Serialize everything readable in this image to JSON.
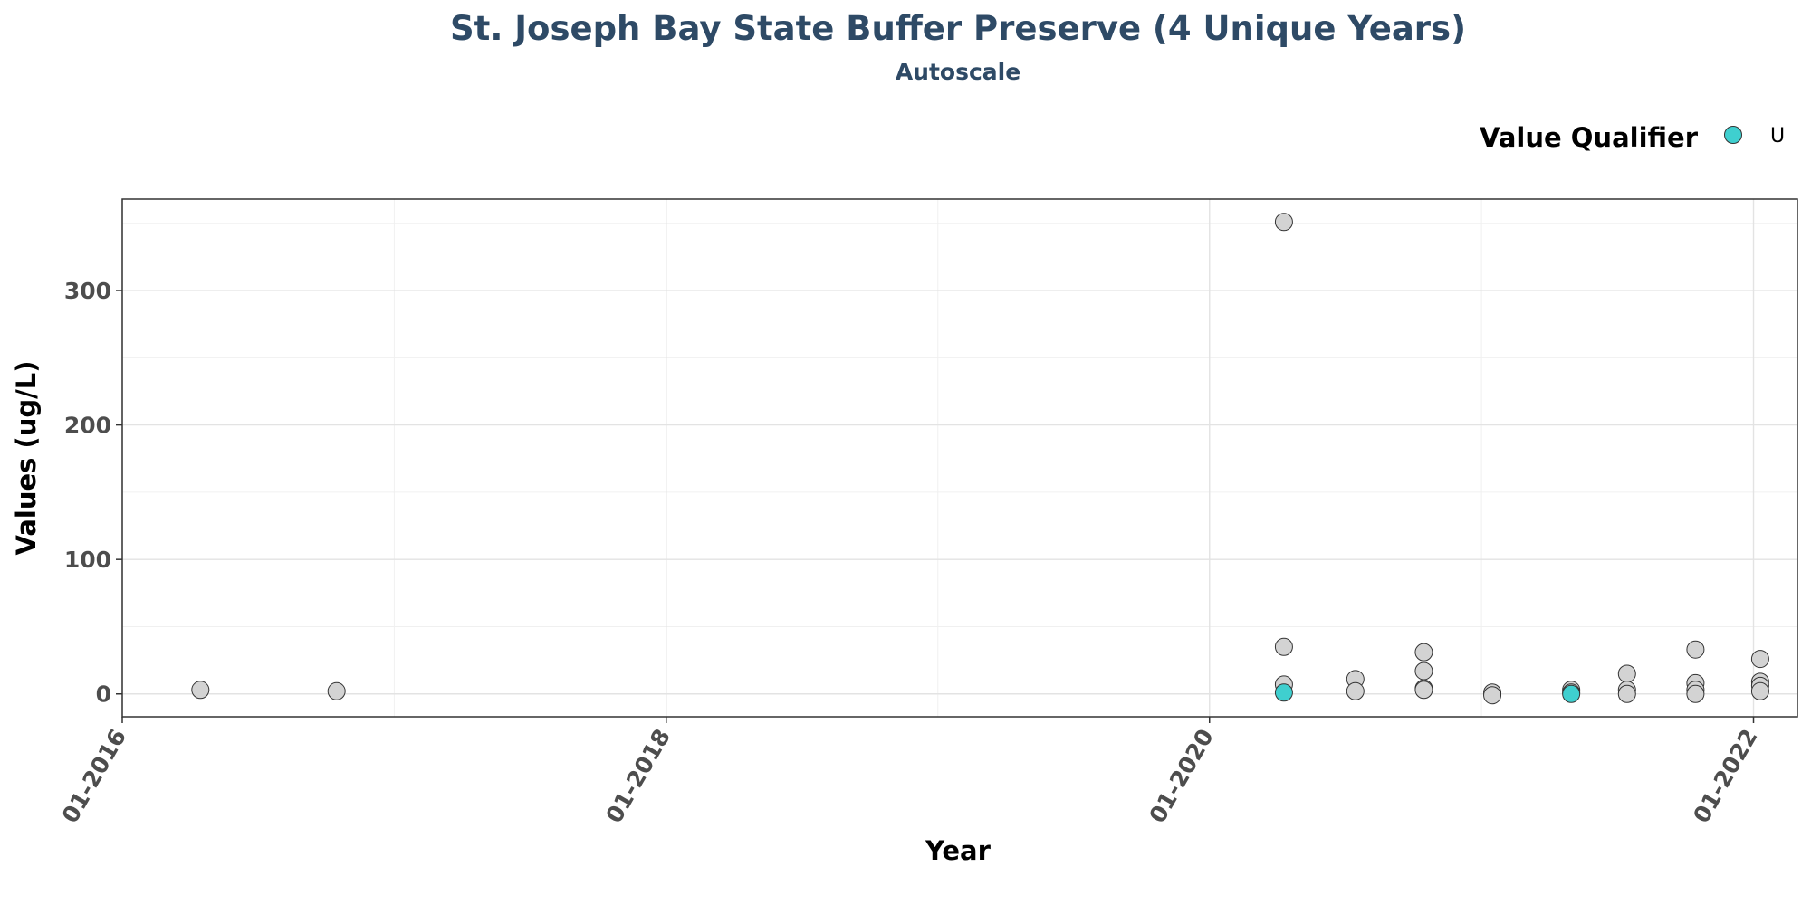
{
  "chart_data": {
    "type": "scatter",
    "title": "St. Joseph Bay State Buffer Preserve (4 Unique Years)",
    "subtitle": "Autoscale",
    "xlabel": "Year",
    "ylabel": "Values (ug/L)",
    "x_axis_type": "date",
    "xlim": [
      "2016-01-01",
      "2022-03-01"
    ],
    "ylim": [
      -17,
      368
    ],
    "x_ticks": [
      {
        "date": "2016-01-01",
        "label": "01-2016"
      },
      {
        "date": "2018-01-01",
        "label": "01-2018"
      },
      {
        "date": "2020-01-01",
        "label": "01-2020"
      },
      {
        "date": "2022-01-01",
        "label": "01-2022"
      }
    ],
    "y_ticks": [
      0,
      100,
      200,
      300
    ],
    "grid": true,
    "legend": {
      "title": "Value Qualifier",
      "position": "top-right",
      "entries": [
        {
          "label": "U",
          "color": "#3fcfcf"
        }
      ]
    },
    "colors": {
      "default_point": "#d3d3d3",
      "qualifier_U": "#3fcfcf",
      "title": "#2e4a66"
    },
    "series": [
      {
        "qualifier": "",
        "color": "#d3d3d3",
        "points": [
          {
            "x": "2016-04-15",
            "y": 3
          },
          {
            "x": "2016-10-15",
            "y": 2
          },
          {
            "x": "2020-04-10",
            "y": 351
          },
          {
            "x": "2020-04-10",
            "y": 35
          },
          {
            "x": "2020-04-10",
            "y": 7
          },
          {
            "x": "2020-07-15",
            "y": 11
          },
          {
            "x": "2020-07-15",
            "y": 2
          },
          {
            "x": "2020-10-15",
            "y": 31
          },
          {
            "x": "2020-10-15",
            "y": 17
          },
          {
            "x": "2020-10-15",
            "y": 4
          },
          {
            "x": "2020-10-15",
            "y": 3
          },
          {
            "x": "2021-01-15",
            "y": 1
          },
          {
            "x": "2021-01-15",
            "y": -1
          },
          {
            "x": "2021-05-01",
            "y": 3
          },
          {
            "x": "2021-05-01",
            "y": 1
          },
          {
            "x": "2021-07-15",
            "y": 15
          },
          {
            "x": "2021-07-15",
            "y": 3
          },
          {
            "x": "2021-07-15",
            "y": 0
          },
          {
            "x": "2021-10-15",
            "y": 33
          },
          {
            "x": "2021-10-15",
            "y": 8
          },
          {
            "x": "2021-10-15",
            "y": 3
          },
          {
            "x": "2021-10-15",
            "y": 0
          },
          {
            "x": "2022-01-10",
            "y": 26
          },
          {
            "x": "2022-01-10",
            "y": 9
          },
          {
            "x": "2022-01-10",
            "y": 6
          },
          {
            "x": "2022-01-10",
            "y": 2
          }
        ]
      },
      {
        "qualifier": "U",
        "color": "#3fcfcf",
        "points": [
          {
            "x": "2020-04-10",
            "y": 1
          },
          {
            "x": "2021-05-01",
            "y": 0
          }
        ]
      }
    ]
  }
}
